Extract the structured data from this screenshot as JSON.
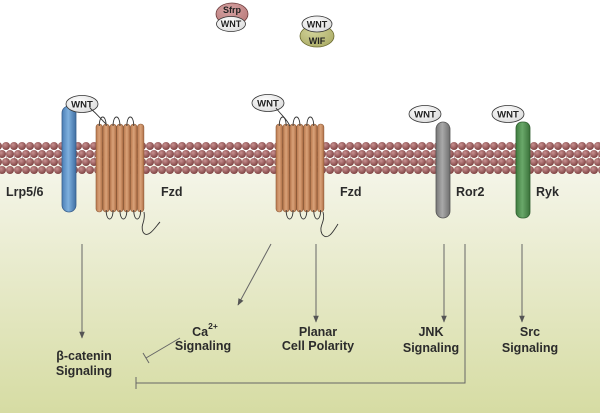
{
  "ligands": {
    "wnt": "WNT",
    "sfrp": "Sfrp",
    "wif": "WIF"
  },
  "receptors": {
    "lrp": "Lrp5/6",
    "fzd_left": "Fzd",
    "fzd_middle": "Fzd",
    "ror2": "Ror2",
    "ryk": "Ryk"
  },
  "pathways": {
    "beta_catenin": [
      "β-catenin",
      "Signaling"
    ],
    "calcium": {
      "base": "Ca",
      "superscript": "2+",
      "line2": "Signaling"
    },
    "planar": [
      "Planar",
      "Cell Polarity"
    ],
    "jnk": [
      "JNK",
      "Signaling"
    ],
    "src": [
      "Src",
      "Signaling"
    ]
  },
  "colors": {
    "membrane_bead": "#7b3f3f",
    "lrp_receptor": "#7fb0de",
    "fzd_receptor": "#d9a279",
    "ror2_receptor": "#a9a9a9",
    "ryk_receptor": "#6aa86a",
    "sfrp_cap": "#b87878",
    "wif_cap": "#a9aa63",
    "cytoplasm_top": "#f6f6ec",
    "cytoplasm_bottom": "#d6dca3"
  }
}
